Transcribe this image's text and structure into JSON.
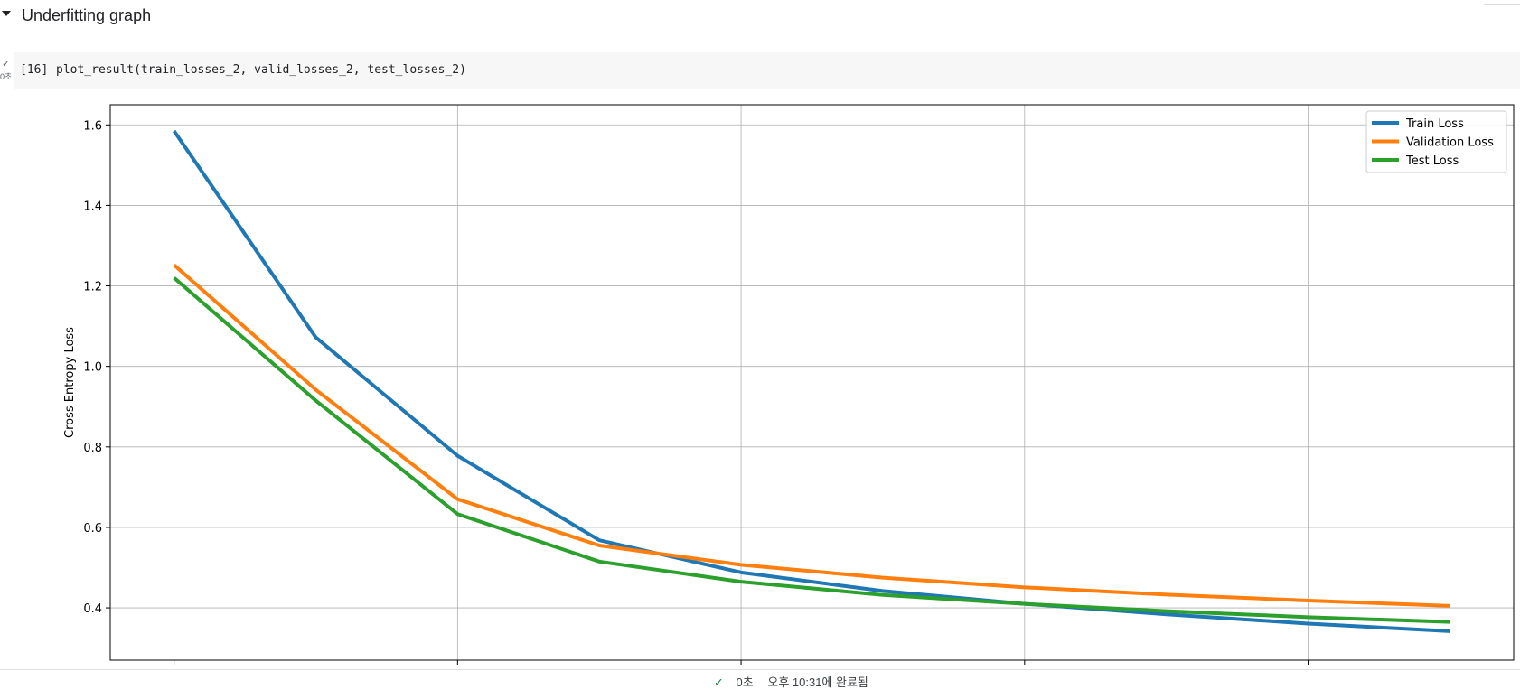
{
  "section": {
    "title": "Underfitting graph"
  },
  "cell": {
    "status_icon": "check-icon",
    "exec_time": "0초",
    "exec_count": "[16]",
    "code": "plot_result(train_losses_2, valid_losses_2, test_losses_2)"
  },
  "chart_data": {
    "type": "line",
    "title": "",
    "xlabel": "",
    "ylabel": "Cross Entropy Loss",
    "x": [
      0,
      1,
      2,
      3,
      4,
      5,
      6,
      7,
      8,
      9
    ],
    "xlim": [
      -0.45,
      9.45
    ],
    "ylim": [
      0.27,
      1.65
    ],
    "xticks": [
      0,
      2,
      4,
      6,
      8
    ],
    "xtick_labels": [
      "",
      "",
      "",
      "",
      ""
    ],
    "yticks": [
      0.4,
      0.6,
      0.8,
      1.0,
      1.2,
      1.4,
      1.6
    ],
    "ytick_labels": [
      "0.4",
      "0.6",
      "0.8",
      "1.0",
      "1.2",
      "1.4",
      "1.6"
    ],
    "grid": true,
    "legend_position": "top-right",
    "series": [
      {
        "name": "Train Loss",
        "color": "#1f77b4",
        "values": [
          1.585,
          1.072,
          0.778,
          0.568,
          0.488,
          0.442,
          0.41,
          0.384,
          0.361,
          0.342
        ]
      },
      {
        "name": "Validation Loss",
        "color": "#ff7f0e",
        "values": [
          1.252,
          0.942,
          0.67,
          0.555,
          0.507,
          0.475,
          0.451,
          0.433,
          0.418,
          0.405
        ]
      },
      {
        "name": "Test Loss",
        "color": "#2ca02c",
        "values": [
          1.22,
          0.915,
          0.633,
          0.515,
          0.465,
          0.432,
          0.41,
          0.392,
          0.377,
          0.365
        ]
      }
    ]
  },
  "status": {
    "icon": "check-icon",
    "duration": "0초",
    "completed": "오후 10:31에 완료됨"
  }
}
